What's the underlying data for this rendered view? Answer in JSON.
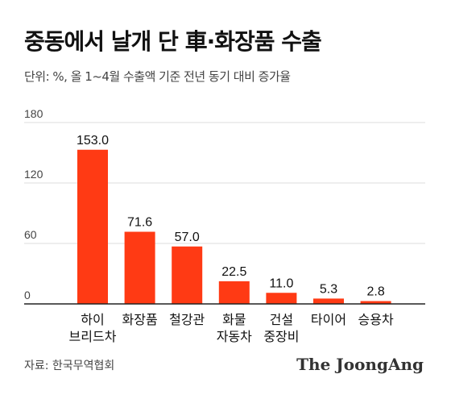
{
  "header": {
    "title": "중동에서 날개 단 車·화장품 수출",
    "subtitle": "단위: %, 올 1~4월 수출액 기준 전년 동기 대비 증가율"
  },
  "footer": {
    "source": "자료: 한국무역협회",
    "brand": "The JoongAng"
  },
  "colors": {
    "bar": "#ff3a14",
    "grid": "#dddddd",
    "axis": "#222222"
  },
  "chart_data": {
    "type": "bar",
    "categories": [
      [
        "하이",
        "브리드차"
      ],
      [
        "화장품"
      ],
      [
        "철강관"
      ],
      [
        "화물",
        "자동차"
      ],
      [
        "건설",
        "중장비"
      ],
      [
        "타이어"
      ],
      [
        "승용차"
      ]
    ],
    "values": [
      153.0,
      71.6,
      57.0,
      22.5,
      11.0,
      5.3,
      2.8
    ],
    "value_labels": [
      "153.0",
      "71.6",
      "57.0",
      "22.5",
      "11.0",
      "5.3",
      "2.8"
    ],
    "yticks": [
      0,
      60,
      120,
      180
    ],
    "ylim": [
      0,
      180
    ],
    "grid": true,
    "legend": false
  }
}
